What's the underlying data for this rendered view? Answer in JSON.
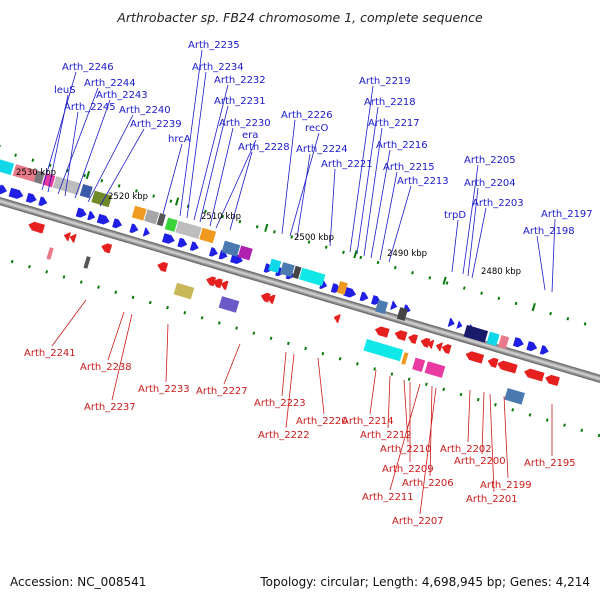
{
  "title": "Arthrobacter sp. FB24 chromosome 1, complete sequence",
  "footer": {
    "accession": "Accession: NC_008541",
    "summary": "Topology: circular; Length: 4,698,945 bp; Genes: 4,214"
  },
  "ticks": [
    "2530 kbp",
    "2520 kbp",
    "2510 kbp",
    "2500 kbp",
    "2490 kbp",
    "2480 kbp"
  ],
  "forward_genes": [
    "Arth_2246",
    "leuS",
    "Arth_2244",
    "Arth_2245",
    "Arth_2243",
    "Arth_2240",
    "Arth_2239",
    "hrcA",
    "Arth_2235",
    "Arth_2234",
    "Arth_2232",
    "Arth_2231",
    "Arth_2230",
    "era",
    "Arth_2228",
    "Arth_2226",
    "recO",
    "Arth_2224",
    "Arth_2221",
    "Arth_2219",
    "Arth_2218",
    "Arth_2217",
    "Arth_2216",
    "Arth_2215",
    "Arth_2213",
    "trpD",
    "Arth_2205",
    "Arth_2204",
    "Arth_2203",
    "Arth_2198",
    "Arth_2197"
  ],
  "reverse_genes": [
    "Arth_2241",
    "Arth_2238",
    "Arth_2237",
    "Arth_2233",
    "Arth_2227",
    "Arth_2223",
    "Arth_2222",
    "Arth_2220",
    "Arth_2214",
    "Arth_2212",
    "Arth_2210",
    "Arth_2209",
    "Arth_2211",
    "Arth_2206",
    "Arth_2207",
    "Arth_2202",
    "Arth_2200",
    "Arth_2201",
    "Arth_2199",
    "Arth_2195"
  ],
  "colors": {
    "forward_arrow": "#1f1fe6",
    "reverse_arrow": "#e61f1f",
    "forward_label": "#1a1acc",
    "reverse_label": "#cc1a1a",
    "backbone": "#8a8a8a"
  }
}
